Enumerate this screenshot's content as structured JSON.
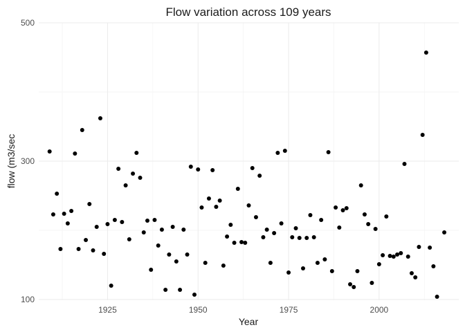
{
  "chart_data": {
    "type": "scatter",
    "title": "Flow variation across 109 years",
    "xlabel": "Year",
    "ylabel": "flow (m3/sec",
    "xlim": [
      1906,
      2022
    ],
    "ylim": [
      100,
      500
    ],
    "y_scale": "linear",
    "x_ticks": [
      1925,
      1950,
      1975,
      2000
    ],
    "x_tick_labels": [
      "1925",
      "1950",
      "1975",
      "2000"
    ],
    "x_minor_ticks": [
      1912.5,
      1937.5,
      1962.5,
      1987.5,
      2012.5
    ],
    "y_ticks": [
      100,
      300,
      500
    ],
    "y_tick_labels": [
      "100",
      "300",
      "500"
    ],
    "y_minor_ticks": [
      200,
      400
    ],
    "grid": true,
    "legend": "none",
    "point_color": "#000000",
    "points": [
      {
        "x": 1909,
        "y": 314
      },
      {
        "x": 1910,
        "y": 223
      },
      {
        "x": 1911,
        "y": 253
      },
      {
        "x": 1912,
        "y": 173
      },
      {
        "x": 1913,
        "y": 224
      },
      {
        "x": 1914,
        "y": 210
      },
      {
        "x": 1915,
        "y": 228
      },
      {
        "x": 1916,
        "y": 311
      },
      {
        "x": 1917,
        "y": 173
      },
      {
        "x": 1918,
        "y": 345
      },
      {
        "x": 1919,
        "y": 186
      },
      {
        "x": 1920,
        "y": 238
      },
      {
        "x": 1921,
        "y": 171
      },
      {
        "x": 1922,
        "y": 205
      },
      {
        "x": 1923,
        "y": 362
      },
      {
        "x": 1924,
        "y": 166
      },
      {
        "x": 1925,
        "y": 209
      },
      {
        "x": 1926,
        "y": 120
      },
      {
        "x": 1927,
        "y": 215
      },
      {
        "x": 1928,
        "y": 289
      },
      {
        "x": 1929,
        "y": 212
      },
      {
        "x": 1930,
        "y": 265
      },
      {
        "x": 1931,
        "y": 187
      },
      {
        "x": 1932,
        "y": 282
      },
      {
        "x": 1933,
        "y": 312
      },
      {
        "x": 1934,
        "y": 276
      },
      {
        "x": 1935,
        "y": 197
      },
      {
        "x": 1936,
        "y": 214
      },
      {
        "x": 1937,
        "y": 143
      },
      {
        "x": 1938,
        "y": 215
      },
      {
        "x": 1939,
        "y": 178
      },
      {
        "x": 1940,
        "y": 201
      },
      {
        "x": 1941,
        "y": 114
      },
      {
        "x": 1942,
        "y": 165
      },
      {
        "x": 1943,
        "y": 205
      },
      {
        "x": 1944,
        "y": 155
      },
      {
        "x": 1945,
        "y": 114
      },
      {
        "x": 1946,
        "y": 201
      },
      {
        "x": 1947,
        "y": 165
      },
      {
        "x": 1948,
        "y": 292
      },
      {
        "x": 1949,
        "y": 107
      },
      {
        "x": 1950,
        "y": 288
      },
      {
        "x": 1951,
        "y": 233
      },
      {
        "x": 1952,
        "y": 153
      },
      {
        "x": 1953,
        "y": 246
      },
      {
        "x": 1954,
        "y": 287
      },
      {
        "x": 1955,
        "y": 234
      },
      {
        "x": 1956,
        "y": 243
      },
      {
        "x": 1957,
        "y": 149
      },
      {
        "x": 1958,
        "y": 191
      },
      {
        "x": 1959,
        "y": 208
      },
      {
        "x": 1960,
        "y": 182
      },
      {
        "x": 1961,
        "y": 260
      },
      {
        "x": 1962,
        "y": 183
      },
      {
        "x": 1963,
        "y": 182
      },
      {
        "x": 1964,
        "y": 236
      },
      {
        "x": 1965,
        "y": 290
      },
      {
        "x": 1966,
        "y": 219
      },
      {
        "x": 1967,
        "y": 279
      },
      {
        "x": 1968,
        "y": 190
      },
      {
        "x": 1969,
        "y": 201
      },
      {
        "x": 1970,
        "y": 153
      },
      {
        "x": 1971,
        "y": 196
      },
      {
        "x": 1972,
        "y": 312
      },
      {
        "x": 1973,
        "y": 210
      },
      {
        "x": 1974,
        "y": 315
      },
      {
        "x": 1975,
        "y": 139
      },
      {
        "x": 1976,
        "y": 190
      },
      {
        "x": 1977,
        "y": 203
      },
      {
        "x": 1978,
        "y": 189
      },
      {
        "x": 1979,
        "y": 145
      },
      {
        "x": 1980,
        "y": 189
      },
      {
        "x": 1981,
        "y": 222
      },
      {
        "x": 1982,
        "y": 190
      },
      {
        "x": 1983,
        "y": 153
      },
      {
        "x": 1984,
        "y": 215
      },
      {
        "x": 1985,
        "y": 158
      },
      {
        "x": 1986,
        "y": 313
      },
      {
        "x": 1987,
        "y": 141
      },
      {
        "x": 1988,
        "y": 233
      },
      {
        "x": 1989,
        "y": 204
      },
      {
        "x": 1990,
        "y": 229
      },
      {
        "x": 1991,
        "y": 232
      },
      {
        "x": 1992,
        "y": 122
      },
      {
        "x": 1993,
        "y": 118
      },
      {
        "x": 1994,
        "y": 141
      },
      {
        "x": 1995,
        "y": 265
      },
      {
        "x": 1996,
        "y": 223
      },
      {
        "x": 1997,
        "y": 209
      },
      {
        "x": 1998,
        "y": 124
      },
      {
        "x": 1999,
        "y": 202
      },
      {
        "x": 2000,
        "y": 151
      },
      {
        "x": 2001,
        "y": 164
      },
      {
        "x": 2002,
        "y": 220
      },
      {
        "x": 2003,
        "y": 163
      },
      {
        "x": 2004,
        "y": 162
      },
      {
        "x": 2005,
        "y": 165
      },
      {
        "x": 2006,
        "y": 167
      },
      {
        "x": 2007,
        "y": 296
      },
      {
        "x": 2008,
        "y": 162
      },
      {
        "x": 2009,
        "y": 138
      },
      {
        "x": 2010,
        "y": 132
      },
      {
        "x": 2011,
        "y": 176
      },
      {
        "x": 2012,
        "y": 338
      },
      {
        "x": 2013,
        "y": 457
      },
      {
        "x": 2014,
        "y": 175
      },
      {
        "x": 2015,
        "y": 148
      },
      {
        "x": 2016,
        "y": 104
      },
      {
        "x": 2018,
        "y": 197
      }
    ]
  }
}
